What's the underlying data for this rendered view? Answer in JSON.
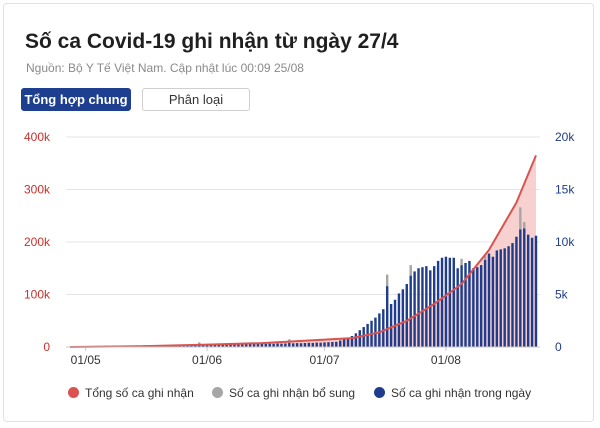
{
  "header": {
    "title": "Số ca Covid-19 ghi nhận từ ngày 27/4",
    "subtitle": "Nguồn: Bộ Y Tế Việt Nam. Cập nhật lúc 00:09 25/08"
  },
  "tabs": [
    {
      "label": "Tổng hợp chung",
      "active": true
    },
    {
      "label": "Phân loại",
      "active": false
    }
  ],
  "colors": {
    "total": "#d9534f",
    "total_fill": "#f5c9c8",
    "supplementary": "#a6a6a6",
    "daily": "#1f3d8c",
    "left_axis": "#c9302c",
    "right_axis": "#1f3d8c"
  },
  "chart_data": {
    "type": "bar",
    "x_start": "2021-04-27",
    "x_end": "2021-08-24",
    "x_ticks": [
      {
        "date": "2021-05-01",
        "label": "01/05"
      },
      {
        "date": "2021-06-01",
        "label": "01/06"
      },
      {
        "date": "2021-07-01",
        "label": "01/07"
      },
      {
        "date": "2021-08-01",
        "label": "01/08"
      }
    ],
    "y_left": {
      "min": 0,
      "max": 400000,
      "ticks": [
        0,
        100000,
        200000,
        300000,
        400000
      ],
      "tick_labels": [
        "0",
        "100k",
        "200k",
        "300k",
        "400k"
      ]
    },
    "y_right": {
      "min": 0,
      "max": 20000,
      "ticks": [
        0,
        5000,
        10000,
        15000,
        20000
      ],
      "tick_labels": [
        "0",
        "5k",
        "10k",
        "15k",
        "20k"
      ]
    },
    "legend_position": "bottom",
    "series": [
      {
        "name": "Tổng số ca ghi nhận",
        "type": "area",
        "axis": "left",
        "points": [
          [
            "2021-04-27",
            0
          ],
          [
            "2021-05-15",
            1500
          ],
          [
            "2021-06-01",
            4500
          ],
          [
            "2021-06-15",
            7500
          ],
          [
            "2021-07-01",
            14000
          ],
          [
            "2021-07-08",
            17000
          ],
          [
            "2021-07-15",
            28000
          ],
          [
            "2021-07-22",
            50000
          ],
          [
            "2021-07-29",
            82000
          ],
          [
            "2021-08-05",
            120000
          ],
          [
            "2021-08-12",
            185000
          ],
          [
            "2021-08-19",
            275000
          ],
          [
            "2021-08-24",
            365000
          ]
        ]
      },
      {
        "name": "Số ca ghi nhận bổ sung",
        "type": "bar",
        "axis": "right",
        "points": [
          [
            "2021-05-30",
            200
          ],
          [
            "2021-06-22",
            350
          ],
          [
            "2021-07-17",
            1100
          ],
          [
            "2021-07-23",
            1000
          ],
          [
            "2021-08-05",
            600
          ],
          [
            "2021-08-11",
            400
          ],
          [
            "2021-08-20",
            2100
          ],
          [
            "2021-08-21",
            600
          ]
        ]
      },
      {
        "name": "Số ca ghi nhận trong ngày",
        "type": "bar",
        "axis": "right",
        "points": [
          [
            "2021-04-27",
            50
          ],
          [
            "2021-04-28",
            60
          ],
          [
            "2021-04-29",
            50
          ],
          [
            "2021-04-30",
            70
          ],
          [
            "2021-05-01",
            60
          ],
          [
            "2021-05-02",
            80
          ],
          [
            "2021-05-03",
            90
          ],
          [
            "2021-05-04",
            100
          ],
          [
            "2021-05-05",
            90
          ],
          [
            "2021-05-06",
            110
          ],
          [
            "2021-05-07",
            100
          ],
          [
            "2021-05-08",
            120
          ],
          [
            "2021-05-09",
            110
          ],
          [
            "2021-05-10",
            130
          ],
          [
            "2021-05-11",
            120
          ],
          [
            "2021-05-12",
            140
          ],
          [
            "2021-05-13",
            130
          ],
          [
            "2021-05-14",
            150
          ],
          [
            "2021-05-15",
            140
          ],
          [
            "2021-05-16",
            160
          ],
          [
            "2021-05-17",
            150
          ],
          [
            "2021-05-18",
            170
          ],
          [
            "2021-05-19",
            160
          ],
          [
            "2021-05-20",
            180
          ],
          [
            "2021-05-21",
            190
          ],
          [
            "2021-05-22",
            170
          ],
          [
            "2021-05-23",
            200
          ],
          [
            "2021-05-24",
            190
          ],
          [
            "2021-05-25",
            210
          ],
          [
            "2021-05-26",
            200
          ],
          [
            "2021-05-27",
            220
          ],
          [
            "2021-05-28",
            210
          ],
          [
            "2021-05-29",
            230
          ],
          [
            "2021-05-30",
            240
          ],
          [
            "2021-05-31",
            220
          ],
          [
            "2021-06-01",
            230
          ],
          [
            "2021-06-02",
            240
          ],
          [
            "2021-06-03",
            230
          ],
          [
            "2021-06-04",
            250
          ],
          [
            "2021-06-05",
            240
          ],
          [
            "2021-06-06",
            260
          ],
          [
            "2021-06-07",
            250
          ],
          [
            "2021-06-08",
            270
          ],
          [
            "2021-06-09",
            260
          ],
          [
            "2021-06-10",
            280
          ],
          [
            "2021-06-11",
            270
          ],
          [
            "2021-06-12",
            290
          ],
          [
            "2021-06-13",
            280
          ],
          [
            "2021-06-14",
            300
          ],
          [
            "2021-06-15",
            310
          ],
          [
            "2021-06-16",
            290
          ],
          [
            "2021-06-17",
            320
          ],
          [
            "2021-06-18",
            300
          ],
          [
            "2021-06-19",
            330
          ],
          [
            "2021-06-20",
            320
          ],
          [
            "2021-06-21",
            340
          ],
          [
            "2021-06-22",
            380
          ],
          [
            "2021-06-23",
            350
          ],
          [
            "2021-06-24",
            370
          ],
          [
            "2021-06-25",
            360
          ],
          [
            "2021-06-26",
            380
          ],
          [
            "2021-06-27",
            400
          ],
          [
            "2021-06-28",
            390
          ],
          [
            "2021-06-29",
            420
          ],
          [
            "2021-06-30",
            410
          ],
          [
            "2021-07-01",
            440
          ],
          [
            "2021-07-02",
            460
          ],
          [
            "2021-07-03",
            480
          ],
          [
            "2021-07-04",
            500
          ],
          [
            "2021-07-05",
            620
          ],
          [
            "2021-07-06",
            760
          ],
          [
            "2021-07-07",
            900
          ],
          [
            "2021-07-08",
            1050
          ],
          [
            "2021-07-09",
            1300
          ],
          [
            "2021-07-10",
            1600
          ],
          [
            "2021-07-11",
            1900
          ],
          [
            "2021-07-12",
            2200
          ],
          [
            "2021-07-13",
            2500
          ],
          [
            "2021-07-14",
            2800
          ],
          [
            "2021-07-15",
            3200
          ],
          [
            "2021-07-16",
            3600
          ],
          [
            "2021-07-17",
            5800
          ],
          [
            "2021-07-18",
            4100
          ],
          [
            "2021-07-19",
            4500
          ],
          [
            "2021-07-20",
            5100
          ],
          [
            "2021-07-21",
            5500
          ],
          [
            "2021-07-22",
            6000
          ],
          [
            "2021-07-23",
            6800
          ],
          [
            "2021-07-24",
            7200
          ],
          [
            "2021-07-25",
            7500
          ],
          [
            "2021-07-26",
            7600
          ],
          [
            "2021-07-27",
            7700
          ],
          [
            "2021-07-28",
            7300
          ],
          [
            "2021-07-29",
            7700
          ],
          [
            "2021-07-30",
            8200
          ],
          [
            "2021-07-31",
            8500
          ],
          [
            "2021-08-01",
            8600
          ],
          [
            "2021-08-02",
            8500
          ],
          [
            "2021-08-03",
            8500
          ],
          [
            "2021-08-04",
            7500
          ],
          [
            "2021-08-05",
            7800
          ],
          [
            "2021-08-06",
            8000
          ],
          [
            "2021-08-07",
            8200
          ],
          [
            "2021-08-08",
            7500
          ],
          [
            "2021-08-09",
            7600
          ],
          [
            "2021-08-10",
            7800
          ],
          [
            "2021-08-11",
            8300
          ],
          [
            "2021-08-12",
            8900
          ],
          [
            "2021-08-13",
            8600
          ],
          [
            "2021-08-14",
            9200
          ],
          [
            "2021-08-15",
            9300
          ],
          [
            "2021-08-16",
            9400
          ],
          [
            "2021-08-17",
            9600
          ],
          [
            "2021-08-18",
            9900
          ],
          [
            "2021-08-19",
            10500
          ],
          [
            "2021-08-20",
            11200
          ],
          [
            "2021-08-21",
            11300
          ],
          [
            "2021-08-22",
            10700
          ],
          [
            "2021-08-23",
            10400
          ],
          [
            "2021-08-24",
            10600
          ]
        ]
      }
    ]
  }
}
